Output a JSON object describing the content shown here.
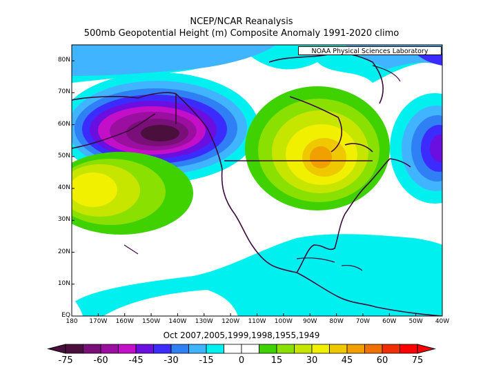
{
  "title_line1": "NCEP/NCAR Reanalysis",
  "title_line2": "500mb Geopotential Height (m) Composite Anomaly 1991-2020 climo",
  "credit": "NOAA Physical Sciences Laboratory",
  "subtitle": "Oct 2007,2005,1999,1998,1955,1949",
  "lat_labels": [
    "80N",
    "70N",
    "60N",
    "50N",
    "40N",
    "30N",
    "20N",
    "10N",
    "EQ"
  ],
  "lon_labels": [
    "180",
    "170W",
    "160W",
    "150W",
    "140W",
    "130W",
    "120W",
    "110W",
    "100W",
    "90W",
    "80W",
    "70W",
    "60W",
    "50W",
    "40W"
  ],
  "colorbar": {
    "labels": [
      "-75",
      "-60",
      "-45",
      "-30",
      "-15",
      "0",
      "15",
      "30",
      "45",
      "60",
      "75"
    ],
    "colors": [
      "#4a0f3c",
      "#7a0f7a",
      "#9b0fa0",
      "#c30fc8",
      "#6a0fe0",
      "#3c2bff",
      "#2f7ff5",
      "#40b4ff",
      "#00f0f0",
      "#ffffff",
      "#ffffff",
      "#3fd200",
      "#8ae000",
      "#c6e600",
      "#f0f000",
      "#f0c800",
      "#f0a000",
      "#f07000",
      "#f03000",
      "#ff0000"
    ]
  },
  "map": {
    "extent": {
      "lon_min": -180,
      "lon_max": -40,
      "lat_min": 0,
      "lat_max": 85
    },
    "anomaly_centers": [
      {
        "name": "alaska-low",
        "lon": -148,
        "lat": 58,
        "value": -75
      },
      {
        "name": "greatlakes-high",
        "lon": -90,
        "lat": 49,
        "value": 50
      },
      {
        "name": "pacific-high",
        "lon": -176,
        "lat": 41,
        "value": 35
      },
      {
        "name": "atlantic-low",
        "lon": -43,
        "lat": 50,
        "value": -45
      },
      {
        "name": "tropical-low",
        "lon": -100,
        "lat": 10,
        "value": -15
      }
    ]
  }
}
